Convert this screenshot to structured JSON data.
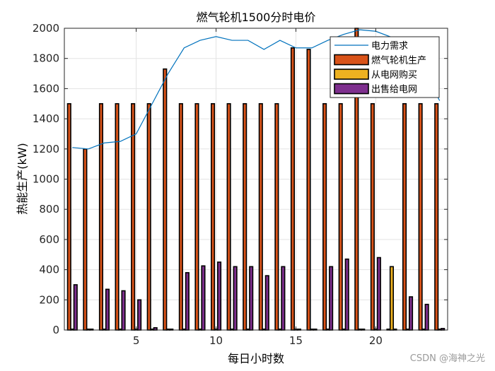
{
  "chart_data": {
    "type": "bar",
    "title": "燃气轮机1500分时电价",
    "xlabel": "每日小时数",
    "ylabel": "热能生产(kW)",
    "xlim": [
      0.5,
      24.5
    ],
    "ylim": [
      0,
      2000
    ],
    "xticks": [
      5,
      10,
      15,
      20
    ],
    "yticks": [
      0,
      200,
      400,
      600,
      800,
      1000,
      1200,
      1400,
      1600,
      1800,
      2000
    ],
    "grid": true,
    "legend_position": "top-right",
    "x": [
      1,
      2,
      3,
      4,
      5,
      6,
      7,
      8,
      9,
      10,
      11,
      12,
      13,
      14,
      15,
      16,
      17,
      18,
      19,
      20,
      21,
      22,
      23,
      24
    ],
    "series": [
      {
        "name": "燃气轮机生产",
        "kind": "bar",
        "color": "#D95319",
        "values": [
          1500,
          1200,
          1500,
          1500,
          1500,
          1500,
          1730,
          1500,
          1500,
          1500,
          1500,
          1500,
          1500,
          1500,
          1870,
          1860,
          1500,
          1500,
          2000,
          1500,
          0,
          1500,
          1500,
          1500
        ]
      },
      {
        "name": "从电网购买",
        "kind": "bar",
        "color": "#EDB120",
        "values": [
          0,
          0,
          0,
          0,
          0,
          0,
          0,
          0,
          0,
          0,
          0,
          0,
          0,
          0,
          0,
          0,
          0,
          0,
          0,
          0,
          420,
          0,
          0,
          0
        ]
      },
      {
        "name": "出售给电网",
        "kind": "bar",
        "color": "#7E2F8E",
        "values": [
          300,
          0,
          270,
          260,
          200,
          15,
          0,
          380,
          425,
          450,
          420,
          420,
          360,
          420,
          0,
          0,
          420,
          470,
          0,
          480,
          0,
          220,
          170,
          10
        ]
      },
      {
        "name": "电力需求",
        "kind": "line",
        "color": "#0072BD",
        "values": [
          1210,
          1200,
          1240,
          1250,
          1300,
          1500,
          1700,
          1870,
          1920,
          1945,
          1920,
          1920,
          1860,
          1920,
          1870,
          1870,
          1920,
          1960,
          1990,
          1980,
          1940,
          1840,
          1720,
          1520
        ]
      }
    ]
  },
  "watermark": "CSDN @海神之光"
}
